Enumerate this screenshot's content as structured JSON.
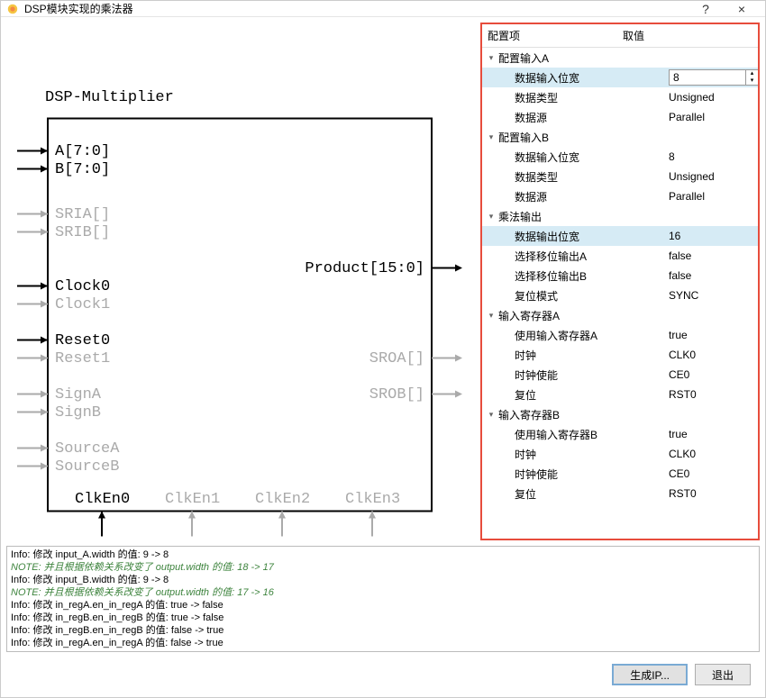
{
  "window": {
    "title": "DSP模块实现的乘法器",
    "help_btn": "?",
    "close_btn": "×"
  },
  "diagram": {
    "title": "DSP-Multiplier",
    "ports_left": [
      {
        "name": "A[7:0]",
        "active": true,
        "kind": "in"
      },
      {
        "name": "B[7:0]",
        "active": true,
        "kind": "in"
      },
      {
        "name": "SRIA[]",
        "active": false,
        "kind": "in"
      },
      {
        "name": "SRIB[]",
        "active": false,
        "kind": "in"
      },
      {
        "name": "Clock0",
        "active": true,
        "kind": "in"
      },
      {
        "name": "Clock1",
        "active": false,
        "kind": "in"
      },
      {
        "name": "Reset0",
        "active": true,
        "kind": "in"
      },
      {
        "name": "Reset1",
        "active": false,
        "kind": "in"
      },
      {
        "name": "SignA",
        "active": false,
        "kind": "in"
      },
      {
        "name": "SignB",
        "active": false,
        "kind": "in"
      },
      {
        "name": "SourceA",
        "active": false,
        "kind": "in"
      },
      {
        "name": "SourceB",
        "active": false,
        "kind": "in"
      }
    ],
    "ports_right": [
      {
        "name": "Product[15:0]",
        "active": true,
        "kind": "out"
      },
      {
        "name": "SROA[]",
        "active": false,
        "kind": "out"
      },
      {
        "name": "SROB[]",
        "active": false,
        "kind": "out"
      }
    ],
    "clkens": [
      "ClkEn0",
      "ClkEn1",
      "ClkEn2",
      "ClkEn3"
    ],
    "clken_active": [
      true,
      false,
      false,
      false
    ],
    "box_color": "#000000",
    "inactive_color": "#aaaaaa"
  },
  "config": {
    "header_label": "配置项",
    "header_value": "取值",
    "groups": [
      {
        "label": "配置输入A",
        "expanded": true,
        "children": [
          {
            "label": "数据输入位宽",
            "value": "8",
            "selected": true,
            "editor": "spin"
          },
          {
            "label": "数据类型",
            "value": "Unsigned"
          },
          {
            "label": "数据源",
            "value": "Parallel"
          }
        ]
      },
      {
        "label": "配置输入B",
        "expanded": true,
        "children": [
          {
            "label": "数据输入位宽",
            "value": "8"
          },
          {
            "label": "数据类型",
            "value": "Unsigned"
          },
          {
            "label": "数据源",
            "value": "Parallel"
          }
        ]
      },
      {
        "label": "乘法输出",
        "expanded": true,
        "children": [
          {
            "label": "数据输出位宽",
            "value": "16",
            "selected": true
          },
          {
            "label": "选择移位输出A",
            "value": "false"
          },
          {
            "label": "选择移位输出B",
            "value": "false"
          },
          {
            "label": "复位模式",
            "value": "SYNC"
          }
        ]
      },
      {
        "label": "输入寄存器A",
        "expanded": true,
        "children": [
          {
            "label": "使用输入寄存器A",
            "value": "true"
          },
          {
            "label": "时钟",
            "value": "CLK0"
          },
          {
            "label": "时钟使能",
            "value": "CE0"
          },
          {
            "label": "复位",
            "value": "RST0"
          }
        ]
      },
      {
        "label": "输入寄存器B",
        "expanded": true,
        "children": [
          {
            "label": "使用输入寄存器B",
            "value": "true"
          },
          {
            "label": "时钟",
            "value": "CLK0"
          },
          {
            "label": "时钟使能",
            "value": "CE0"
          },
          {
            "label": "复位",
            "value": "RST0"
          }
        ]
      }
    ]
  },
  "log": [
    {
      "kind": "info",
      "text": "Info: 修改 input_A.width 的值: 9 -> 8"
    },
    {
      "kind": "note",
      "text": "NOTE:   并且根据依赖关系改变了 output.width 的值: 18 -> 17"
    },
    {
      "kind": "info",
      "text": "Info: 修改 input_B.width 的值: 9 -> 8"
    },
    {
      "kind": "note",
      "text": "NOTE:   并且根据依赖关系改变了 output.width 的值: 17 -> 16"
    },
    {
      "kind": "info",
      "text": "Info: 修改 in_regA.en_in_regA 的值: true -> false"
    },
    {
      "kind": "info",
      "text": "Info: 修改 in_regB.en_in_regB 的值: true -> false"
    },
    {
      "kind": "info",
      "text": "Info: 修改 in_regB.en_in_regB 的值: false -> true"
    },
    {
      "kind": "info",
      "text": "Info: 修改 in_regA.en_in_regA 的值: false -> true"
    }
  ],
  "footer": {
    "primary": "生成IP...",
    "secondary": "退出"
  }
}
